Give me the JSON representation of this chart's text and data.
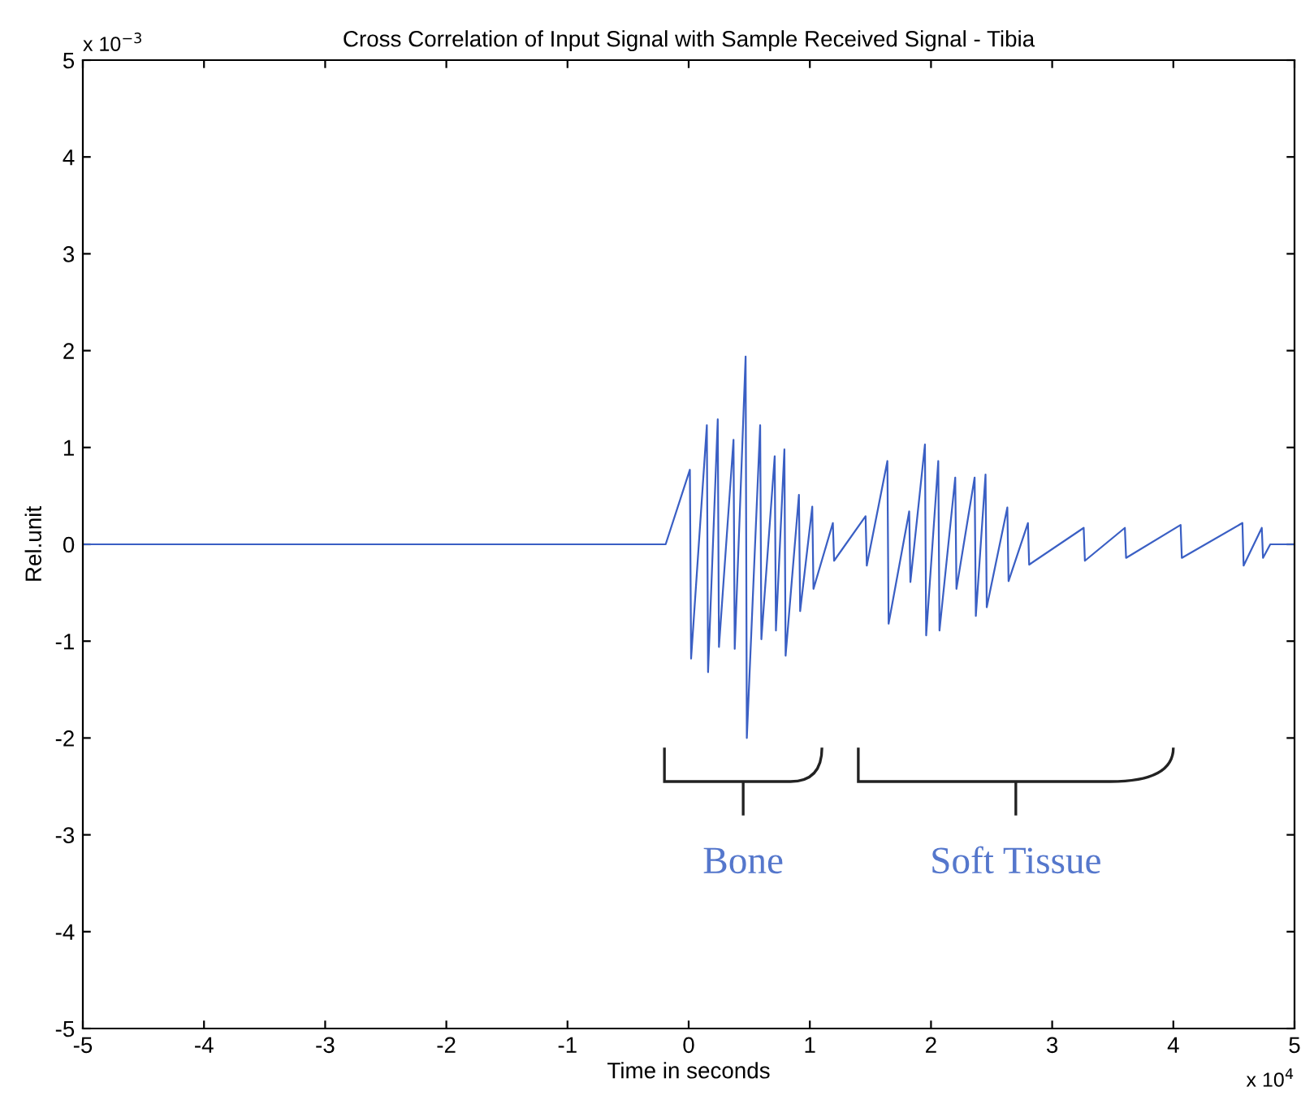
{
  "chart_data": {
    "type": "line",
    "title": "Cross Correlation of Input Signal with Sample Received Signal - Tibia",
    "xlabel": "Time in seconds",
    "ylabel": "Rel.unit",
    "x": [
      -5,
      -4.99,
      -0.2,
      -0.19,
      0.01,
      0.02,
      0.15,
      0.16,
      0.24,
      0.25,
      0.37,
      0.38,
      0.47,
      0.48,
      0.59,
      0.6,
      0.71,
      0.72,
      0.79,
      0.8,
      0.91,
      0.92,
      1.02,
      1.03,
      1.19,
      1.2,
      1.46,
      1.47,
      1.64,
      1.65,
      1.82,
      1.83,
      1.95,
      1.96,
      2.06,
      2.07,
      2.2,
      2.21,
      2.36,
      2.37,
      2.45,
      2.46,
      2.63,
      2.64,
      2.8,
      2.81,
      3.26,
      3.27,
      3.6,
      3.61,
      4.06,
      4.07,
      4.57,
      4.58,
      4.73,
      4.74,
      4.8,
      4.81,
      4.99,
      5
    ],
    "series": [
      {
        "color": "#3a5fc4",
        "values": [
          0,
          0,
          0,
          0,
          0.77,
          -1.18,
          1.23,
          -1.32,
          1.29,
          -1.06,
          1.08,
          -1.08,
          1.94,
          -2.0,
          1.23,
          -0.98,
          0.91,
          -0.89,
          0.98,
          -1.15,
          0.51,
          -0.69,
          0.39,
          -0.46,
          0.22,
          -0.17,
          0.29,
          -0.22,
          0.86,
          -0.82,
          0.34,
          -0.39,
          1.03,
          -0.94,
          0.86,
          -0.89,
          0.69,
          -0.46,
          0.69,
          -0.74,
          0.72,
          -0.65,
          0.38,
          -0.38,
          0.22,
          -0.21,
          0.17,
          -0.17,
          0.17,
          -0.14,
          0.2,
          -0.14,
          0.22,
          -0.22,
          0.17,
          -0.14,
          0,
          0,
          0,
          0
        ]
      }
    ],
    "xlim": [
      -5,
      5
    ],
    "xticks": [
      -5,
      -4,
      -3,
      -2,
      -1,
      0,
      1,
      2,
      3,
      4,
      5
    ],
    "ylim": [
      -5,
      5
    ],
    "yticks": [
      -5,
      -4,
      -3,
      -2,
      -1,
      0,
      1,
      2,
      3,
      4,
      5
    ],
    "annotations": [
      "x 10$^{−3}$",
      "x 10$^{4}$",
      "Bone",
      "Soft Tissue"
    ],
    "grid": false,
    "legend": false,
    "marker": "none",
    "line_style": "solid"
  }
}
